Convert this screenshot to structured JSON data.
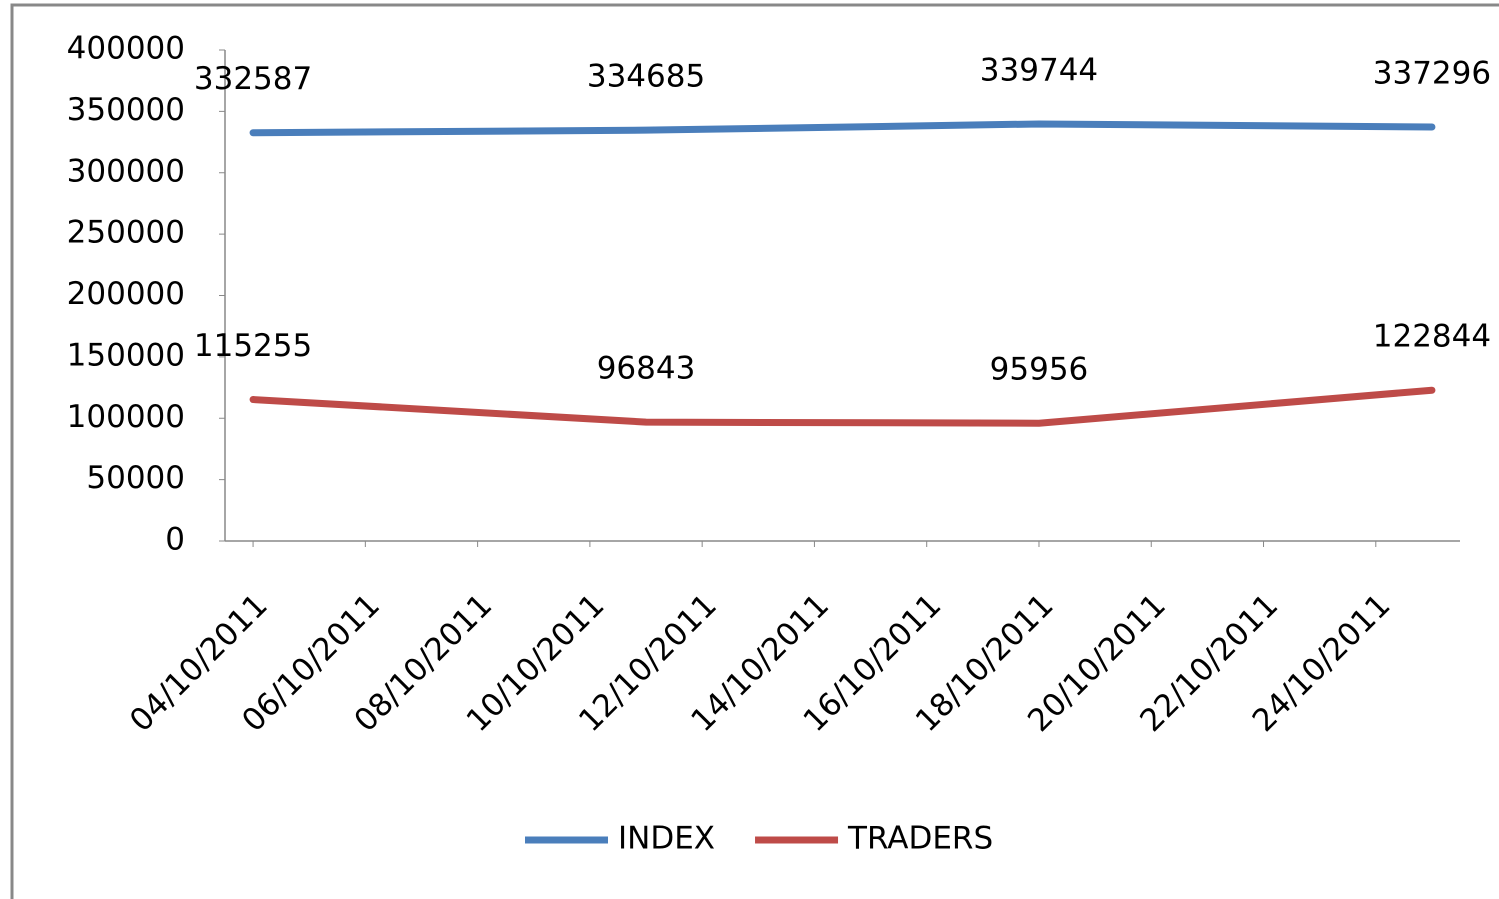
{
  "chart_data": {
    "type": "line",
    "x": [
      "04/10/2011",
      "11/10/2011",
      "18/10/2011",
      "25/10/2011"
    ],
    "xlim": [
      "04/10/2011",
      "25/10/2011"
    ],
    "xticks": [
      "04/10/2011",
      "06/10/2011",
      "08/10/2011",
      "10/10/2011",
      "12/10/2011",
      "14/10/2011",
      "16/10/2011",
      "18/10/2011",
      "20/10/2011",
      "22/10/2011",
      "24/10/2011"
    ],
    "ylim": [
      0,
      400000
    ],
    "yticks": [
      0,
      50000,
      100000,
      150000,
      200000,
      250000,
      300000,
      350000,
      400000
    ],
    "grid": false,
    "legend": "bottom",
    "series": [
      {
        "name": "INDEX",
        "color": "#4a7ebb",
        "values": [
          332587,
          334685,
          339744,
          337296
        ]
      },
      {
        "name": "TRADERS",
        "color": "#be4b48",
        "values": [
          115255,
          96843,
          95956,
          122844
        ]
      }
    ]
  }
}
